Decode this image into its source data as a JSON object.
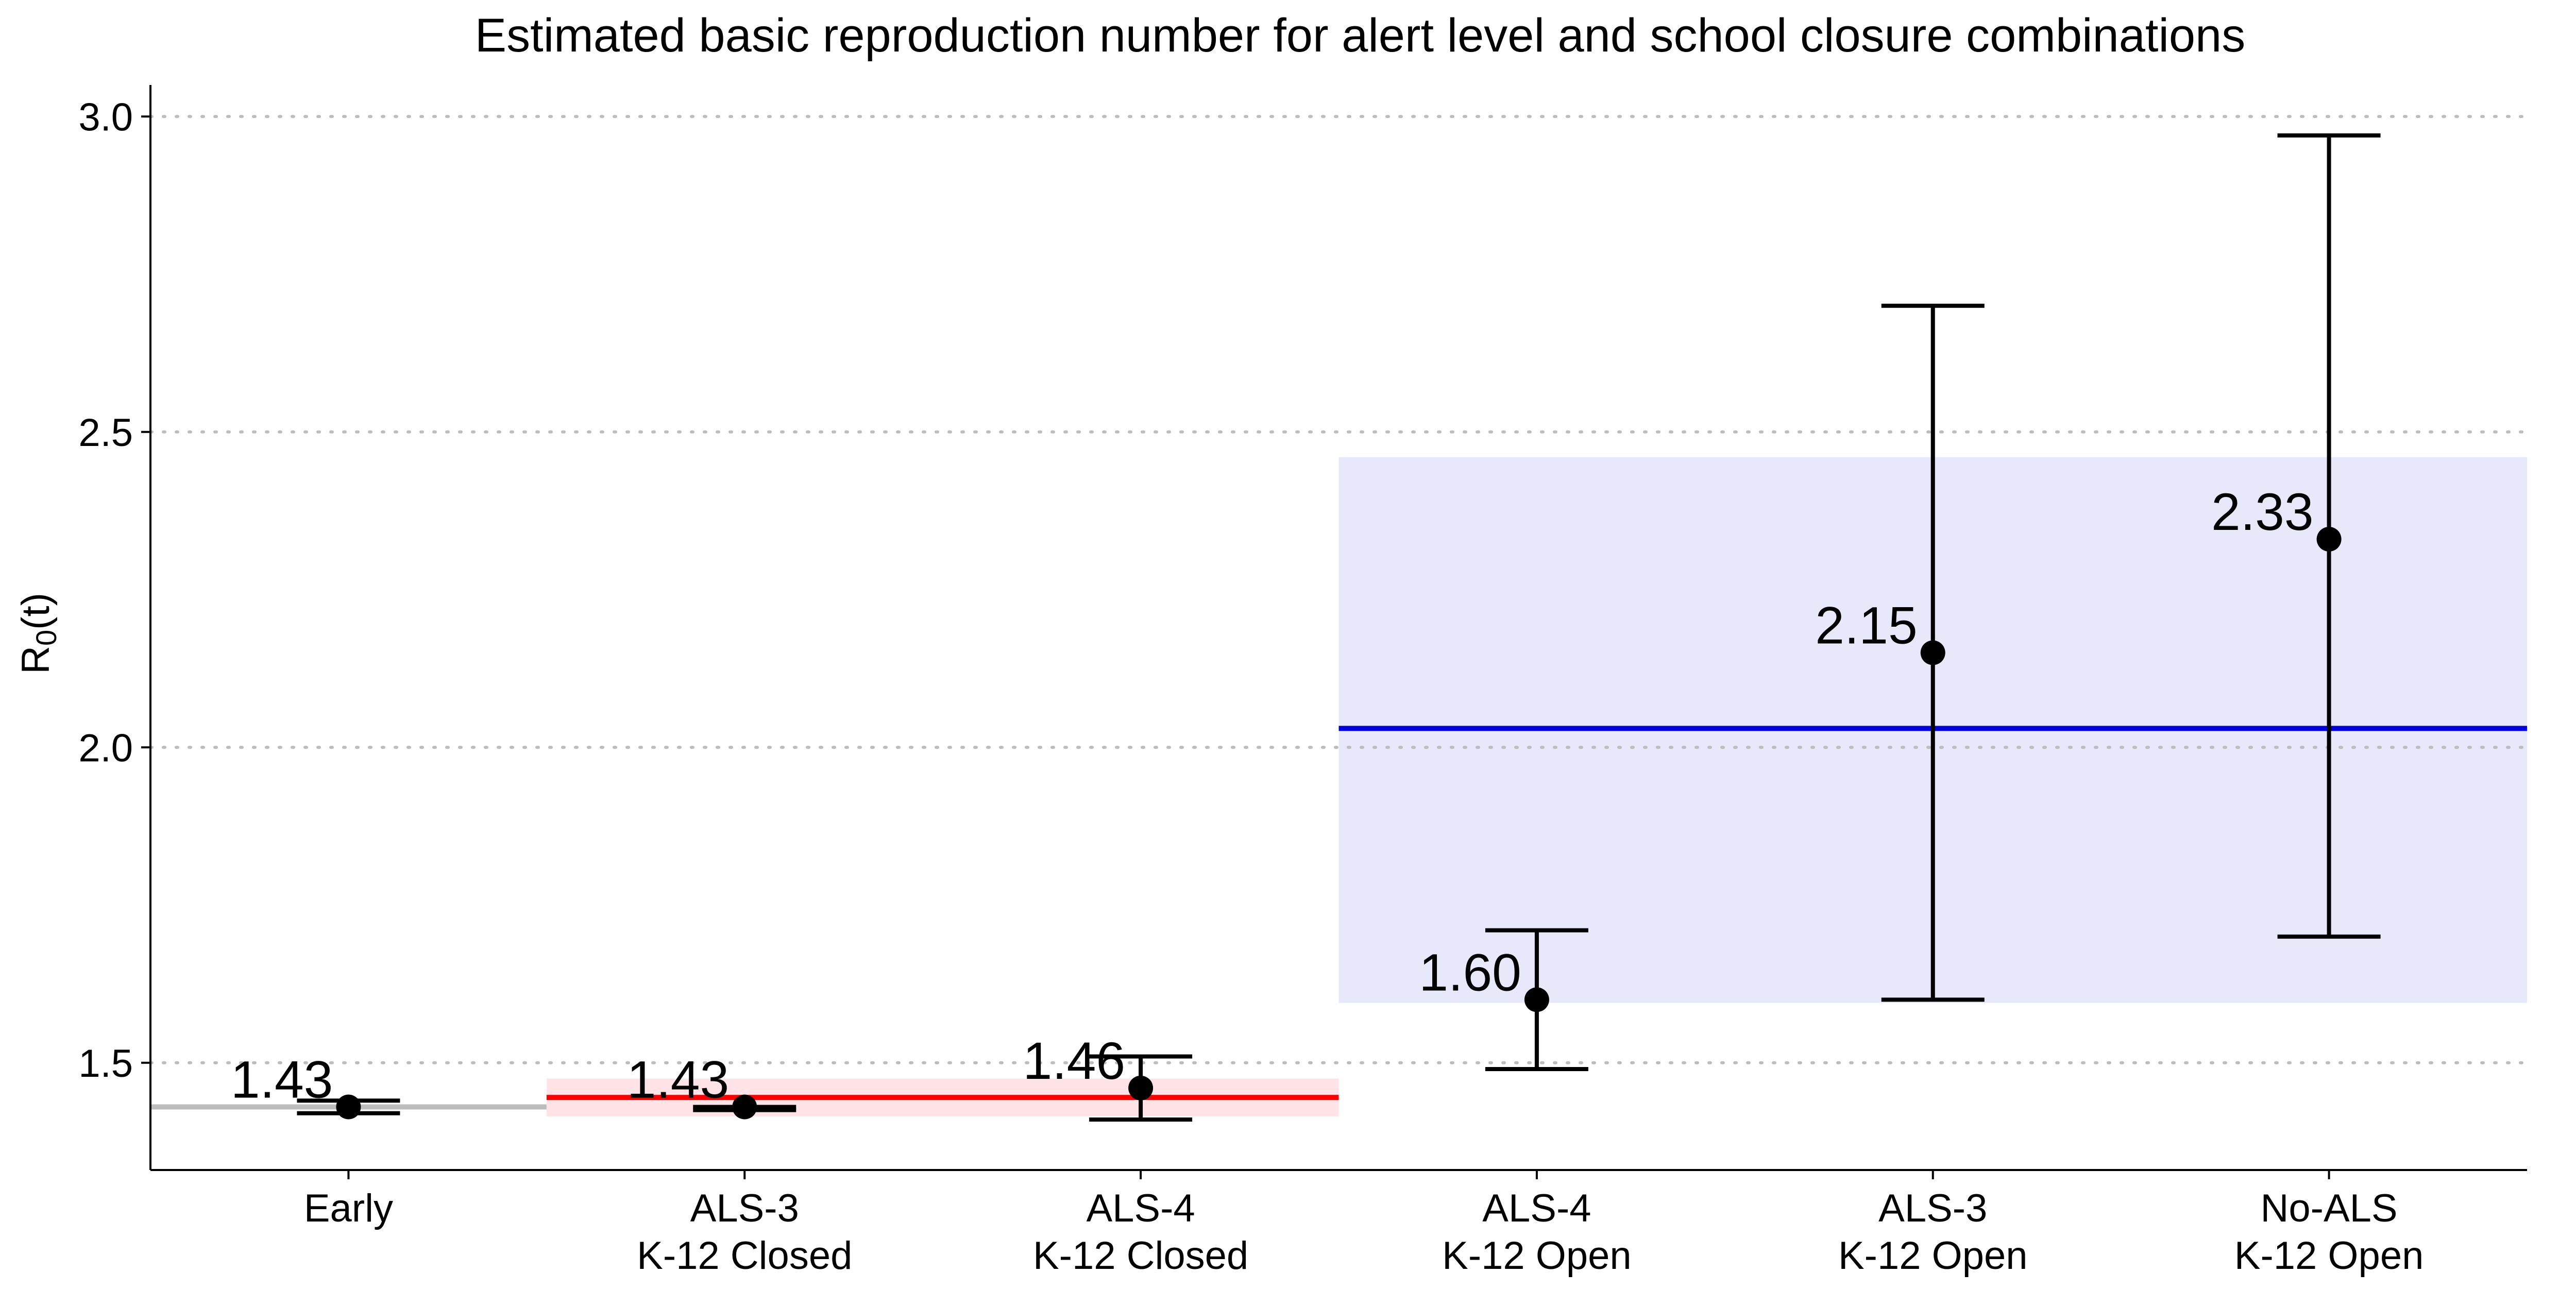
{
  "chart_data": {
    "type": "scatter",
    "title": "Estimated basic reproduction number for alert level and school closure combinations",
    "xlabel": "",
    "ylabel": "R0(t)",
    "ylabel_main": "R",
    "ylabel_sub": "0",
    "ylabel_suffix": "(t)",
    "ylim": [
      1.33,
      3.05
    ],
    "yticks": [
      1.5,
      2.0,
      2.5,
      3.0
    ],
    "ytick_labels": [
      "1.5",
      "2.0",
      "2.5",
      "3.0"
    ],
    "grid": "horizontal dotted at y ticks",
    "categories": [
      [
        "Early"
      ],
      [
        "ALS-3",
        "K-12 Closed"
      ],
      [
        "ALS-4",
        "K-12 Closed"
      ],
      [
        "ALS-4",
        "K-12 Open"
      ],
      [
        "ALS-3",
        "K-12 Open"
      ],
      [
        "No-ALS",
        "K-12 Open"
      ]
    ],
    "points": [
      {
        "category": 0,
        "value": 1.43,
        "lower": 1.42,
        "upper": 1.44,
        "label": "1.43"
      },
      {
        "category": 1,
        "value": 1.43,
        "lower": 1.425,
        "upper": 1.43,
        "label": "1.43"
      },
      {
        "category": 2,
        "value": 1.46,
        "lower": 1.41,
        "upper": 1.51,
        "label": "1.46"
      },
      {
        "category": 3,
        "value": 1.6,
        "lower": 1.49,
        "upper": 1.71,
        "label": "1.60"
      },
      {
        "category": 4,
        "value": 2.15,
        "lower": 1.6,
        "upper": 2.7,
        "label": "2.15"
      },
      {
        "category": 5,
        "value": 2.33,
        "lower": 1.7,
        "upper": 2.97,
        "label": "2.33"
      }
    ],
    "group_means": [
      {
        "from": -0.5,
        "to": 0.5,
        "value": 1.43,
        "band": null,
        "color": "#bdbdbd",
        "band_color": null
      },
      {
        "from": 0.5,
        "to": 2.5,
        "value": 1.445,
        "band": [
          1.415,
          1.475
        ],
        "color": "#ff0000",
        "band_color": "#ffe3e6"
      },
      {
        "from": 2.5,
        "to": 5.5,
        "value": 2.03,
        "band": [
          1.595,
          2.46
        ],
        "color": "#0000dd",
        "band_color": "#e8e8fb"
      }
    ],
    "colors": {
      "point": "#000000",
      "errorbar": "#000000",
      "grid": "#bdbdbd",
      "axis": "#000000"
    }
  }
}
